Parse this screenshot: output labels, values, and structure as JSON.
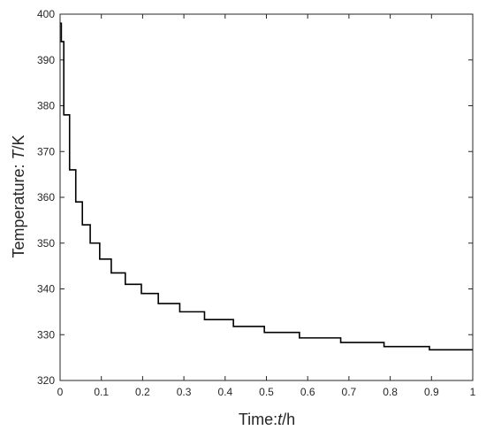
{
  "chart_data": {
    "type": "line",
    "step": true,
    "xlabel": "Time:",
    "xlabel_var": "t",
    "xlabel_unit": "/h",
    "ylabel": "Temperature: ",
    "ylabel_var": "T",
    "ylabel_unit": "/K",
    "xlim": [
      0,
      1
    ],
    "ylim": [
      320,
      400
    ],
    "xticks": [
      "0",
      "0.1",
      "0.2",
      "0.3",
      "0.4",
      "0.5",
      "0.6",
      "0.7",
      "0.8",
      "0.9",
      "1"
    ],
    "yticks": [
      "320",
      "330",
      "340",
      "350",
      "360",
      "370",
      "380",
      "390",
      "400"
    ],
    "grid": false,
    "box": true,
    "line_color": "#000000",
    "series": [
      {
        "points": [
          [
            0,
            398
          ],
          [
            0.003,
            398
          ],
          [
            0.003,
            394
          ],
          [
            0.009,
            394
          ],
          [
            0.009,
            378
          ],
          [
            0.023,
            378
          ],
          [
            0.023,
            366
          ],
          [
            0.038,
            366
          ],
          [
            0.038,
            359
          ],
          [
            0.054,
            359
          ],
          [
            0.054,
            354
          ],
          [
            0.073,
            354
          ],
          [
            0.073,
            350
          ],
          [
            0.096,
            350
          ],
          [
            0.096,
            346.5
          ],
          [
            0.124,
            346.5
          ],
          [
            0.124,
            343.5
          ],
          [
            0.158,
            343.5
          ],
          [
            0.158,
            341
          ],
          [
            0.197,
            341
          ],
          [
            0.197,
            339
          ],
          [
            0.238,
            339
          ],
          [
            0.238,
            336.8
          ],
          [
            0.29,
            336.8
          ],
          [
            0.29,
            335
          ],
          [
            0.35,
            335
          ],
          [
            0.35,
            333.3
          ],
          [
            0.42,
            333.3
          ],
          [
            0.42,
            331.8
          ],
          [
            0.495,
            331.8
          ],
          [
            0.495,
            330.5
          ],
          [
            0.58,
            330.5
          ],
          [
            0.58,
            329.3
          ],
          [
            0.68,
            329.3
          ],
          [
            0.68,
            328.3
          ],
          [
            0.785,
            328.3
          ],
          [
            0.785,
            327.4
          ],
          [
            0.895,
            327.4
          ],
          [
            0.895,
            326.7
          ],
          [
            1.0,
            326.7
          ]
        ]
      }
    ]
  }
}
